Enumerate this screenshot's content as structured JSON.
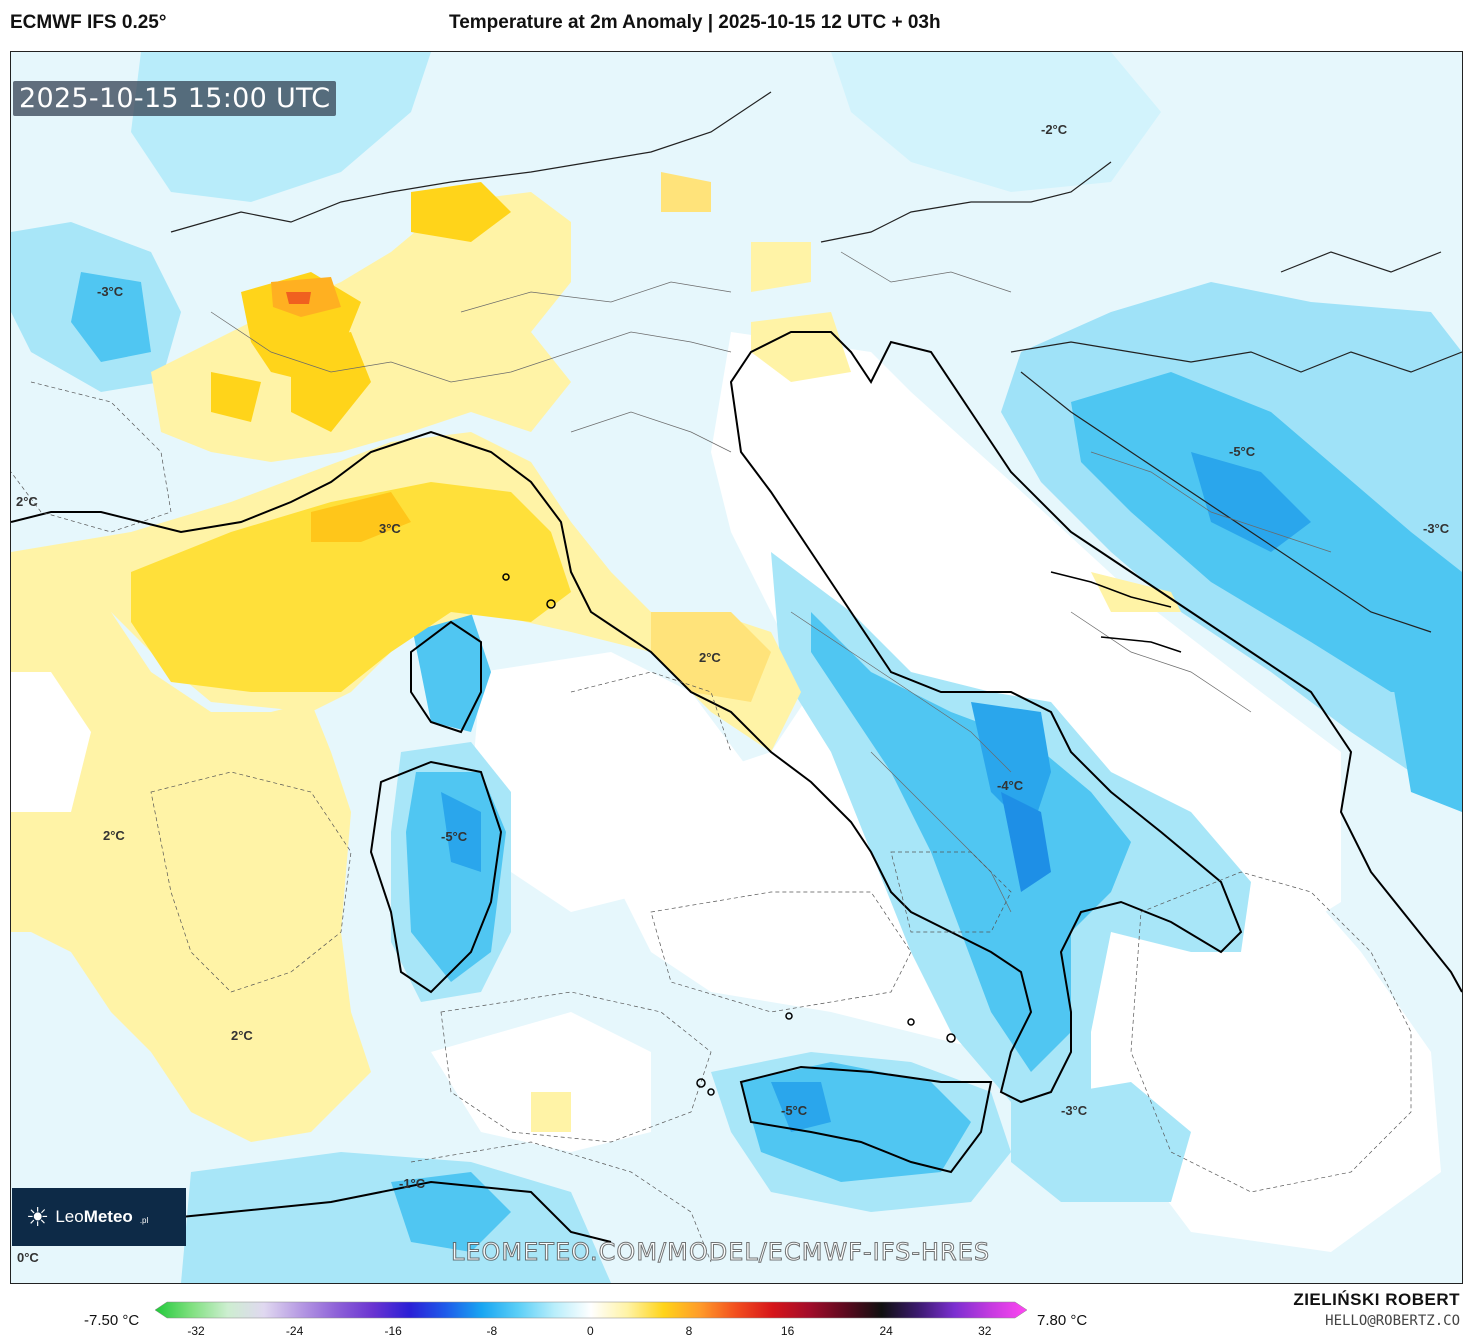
{
  "header": {
    "model": "ECMWF IFS 0.25°",
    "title": "Temperature at 2m Anomaly | 2025-10-15 12 UTC + 03h"
  },
  "map": {
    "valid_time": "2025-10-15 15:00 UTC",
    "watermark": "LEOMETEO.COM/MODEL/ECMWF-IFS-HRES",
    "logo": {
      "brand_plain": "Leo",
      "brand_bold": "Meteo",
      "tld": ".pl"
    },
    "labels": [
      {
        "id": "alps-west",
        "text": "-3°C"
      },
      {
        "id": "slovenia",
        "text": "-2°C"
      },
      {
        "id": "france-south",
        "text": "2°C"
      },
      {
        "id": "ligurian",
        "text": "3°C"
      },
      {
        "id": "tuscany",
        "text": "2°C"
      },
      {
        "id": "croatia",
        "text": "-5°C"
      },
      {
        "id": "balkans-east",
        "text": "-3°C"
      },
      {
        "id": "spain-north",
        "text": "2°C"
      },
      {
        "id": "sardinia",
        "text": "-5°C"
      },
      {
        "id": "apulia",
        "text": "-4°C"
      },
      {
        "id": "balearic",
        "text": "2°C"
      },
      {
        "id": "sicily",
        "text": "-5°C"
      },
      {
        "id": "ionian",
        "text": "-3°C"
      },
      {
        "id": "algeria",
        "text": "-1°C"
      },
      {
        "id": "sw-corner",
        "text": "0°C"
      }
    ]
  },
  "colorbar": {
    "min_label": "-7.50 °C",
    "max_label": "7.80 °C",
    "ticks": [
      "-32",
      "-24",
      "-16",
      "-8",
      "0",
      "8",
      "16",
      "24",
      "32"
    ],
    "stops": [
      "#21c93a",
      "#7fe07f",
      "#cdeed0",
      "#e0d8f0",
      "#b69ae3",
      "#8e62d8",
      "#6a34d1",
      "#2b1fd6",
      "#1e5bea",
      "#19a6f2",
      "#5ccff7",
      "#b9eefb",
      "#ffffff",
      "#fff3a6",
      "#ffd41a",
      "#ff9b2a",
      "#f24e1f",
      "#d6151a",
      "#a30c2a",
      "#5c0a1f",
      "#101010",
      "#3b1a6e",
      "#7b2fd0",
      "#c53be0",
      "#ff46f2"
    ]
  },
  "credits": {
    "author": "ZIELIŃSKI ROBERT",
    "email": "HELLO@ROBERTZ.CO"
  }
}
